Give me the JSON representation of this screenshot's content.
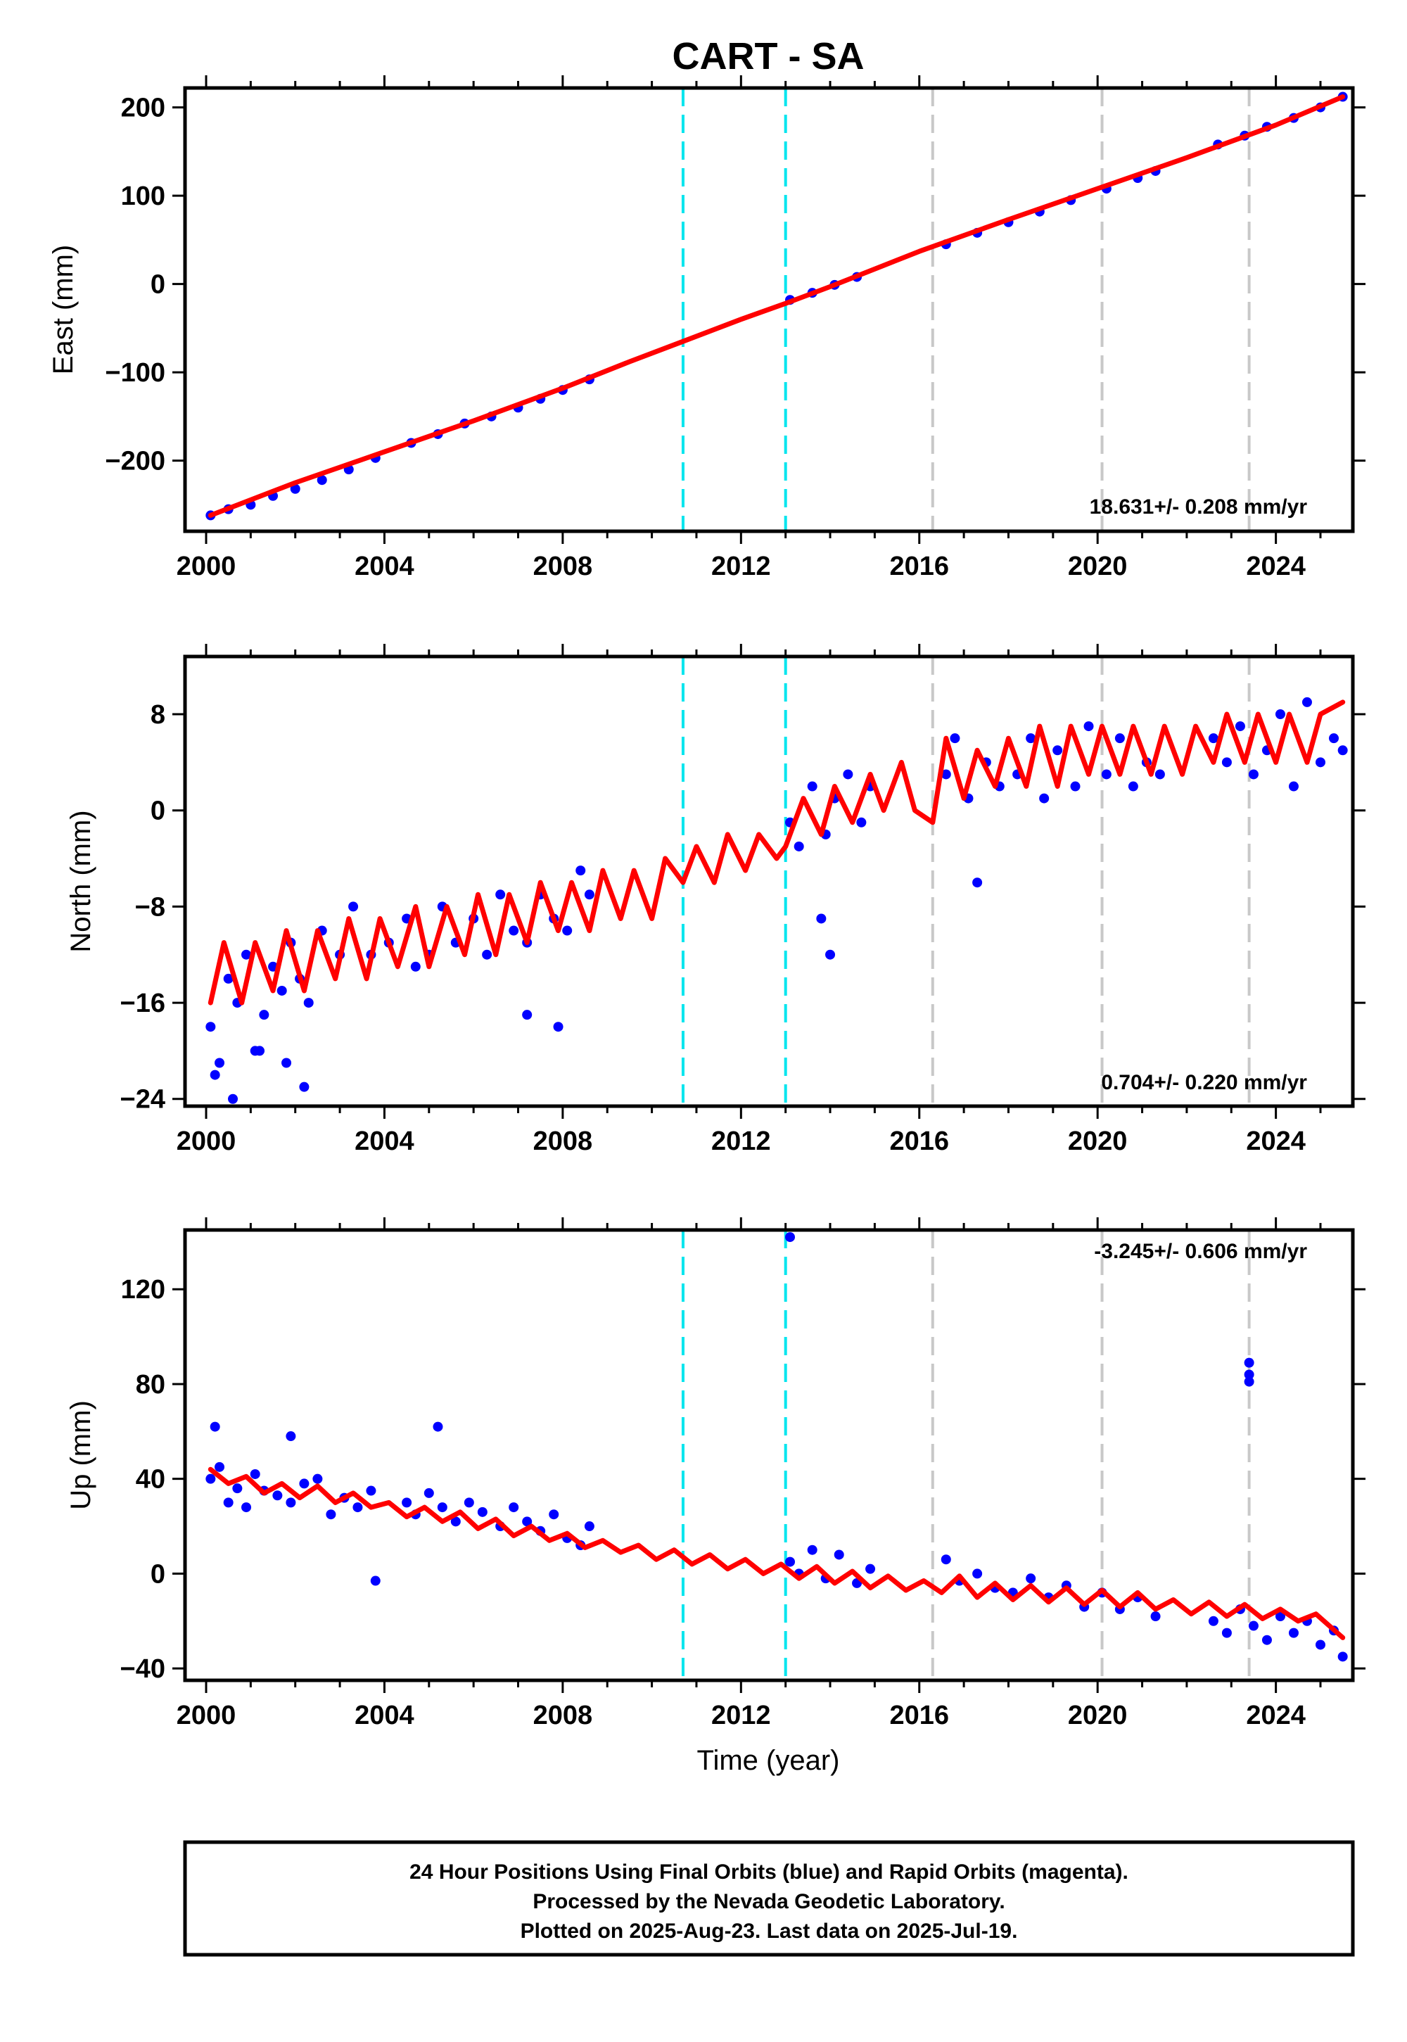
{
  "colors": {
    "final_orbits": "#0000ff",
    "model": "#ff0000",
    "equipment_change": "#00e5ee",
    "other_event": "#c8c8c8",
    "frame": "#000000"
  },
  "chart_data": {
    "type": "scatter",
    "title": "CART - SA",
    "xlabel": "Time (year)",
    "xlim": [
      2000,
      2025.6
    ],
    "xticks": [
      2000,
      2004,
      2008,
      2012,
      2016,
      2020,
      2024
    ],
    "vlines": [
      {
        "x": 2010.7,
        "color": "#00e5ee",
        "style": "dashed"
      },
      {
        "x": 2013.0,
        "color": "#00e5ee",
        "style": "dashed"
      },
      {
        "x": 2016.3,
        "color": "#c8c8c8",
        "style": "dashed"
      },
      {
        "x": 2020.1,
        "color": "#c8c8c8",
        "style": "dashed"
      },
      {
        "x": 2023.4,
        "color": "#c8c8c8",
        "style": "dashed"
      }
    ],
    "panels": [
      {
        "ylabel": "East (mm)",
        "ylim": [
          -280,
          222
        ],
        "yticks": [
          200,
          100,
          0,
          -100,
          -200
        ],
        "ytick_labels": [
          "200",
          "100",
          "0",
          "−100",
          "−200"
        ],
        "rate_text": "18.631+/- 0.208 mm/yr",
        "series": [
          {
            "type": "scatter",
            "color": "#0000ff",
            "x": [
              2000.1,
              2000.5,
              2001.0,
              2001.5,
              2002.0,
              2002.6,
              2003.2,
              2003.8,
              2004.6,
              2005.2,
              2005.8,
              2006.4,
              2007.0,
              2007.5,
              2008.0,
              2008.6,
              2013.1,
              2013.6,
              2014.1,
              2014.6,
              2016.6,
              2017.3,
              2018.0,
              2018.7,
              2019.4,
              2020.2,
              2020.9,
              2021.3,
              2022.7,
              2023.3,
              2023.8,
              2024.4,
              2025.0,
              2025.5
            ],
            "y": [
              -262,
              -255,
              -250,
              -240,
              -232,
              -222,
              -210,
              -197,
              -180,
              -170,
              -158,
              -150,
              -140,
              -130,
              -120,
              -108,
              -18,
              -10,
              -1,
              8,
              45,
              58,
              70,
              82,
              95,
              108,
              120,
              128,
              158,
              168,
              178,
              188,
              200,
              212
            ]
          },
          {
            "type": "line",
            "color": "#ff0000",
            "x": [
              2000.1,
              2002,
              2004,
              2006,
              2008,
              2009.5,
              2010.7,
              2012,
              2013,
              2014,
              2016,
              2018,
              2020,
              2022,
              2024,
              2025.5
            ],
            "y": [
              -262,
              -225,
              -190,
              -155,
              -118,
              -88,
              -65,
              -40,
              -22,
              -3,
              37,
              73,
              108,
              143,
              180,
              212
            ]
          }
        ]
      },
      {
        "ylabel": "North (mm)",
        "ylim": [
          -24.6,
          12.8
        ],
        "yticks": [
          8,
          0,
          -8,
          -16,
          -24
        ],
        "ytick_labels": [
          "8",
          "0",
          "−8",
          "−16",
          "−24"
        ],
        "rate_text": "0.704+/- 0.220 mm/yr",
        "series": [
          {
            "type": "scatter",
            "color": "#0000ff",
            "x": [
              2000.1,
              2000.3,
              2000.5,
              2000.7,
              2000.9,
              2001.1,
              2001.3,
              2001.5,
              2001.7,
              2001.9,
              2002.1,
              2002.3,
              2002.6,
              2003.0,
              2003.3,
              2003.7,
              2004.1,
              2004.5,
              2004.7,
              2005.0,
              2005.3,
              2005.6,
              2006.0,
              2006.3,
              2006.6,
              2006.9,
              2007.2,
              2007.5,
              2007.8,
              2008.1,
              2008.4,
              2008.6,
              2013.1,
              2013.3,
              2013.6,
              2013.9,
              2014.1,
              2014.4,
              2014.7,
              2014.9,
              2016.6,
              2016.8,
              2017.1,
              2017.5,
              2017.8,
              2018.2,
              2018.5,
              2018.8,
              2019.1,
              2019.5,
              2019.8,
              2020.2,
              2020.5,
              2020.8,
              2021.1,
              2021.4,
              2022.6,
              2022.9,
              2023.2,
              2023.5,
              2023.8,
              2024.1,
              2024.4,
              2024.7,
              2025.0,
              2025.3,
              2025.5,
              2000.2,
              2000.6,
              2001.2,
              2001.8,
              2002.2,
              2007.2,
              2007.9,
              2013.8,
              2014.0,
              2017.3
            ],
            "y": [
              -18,
              -21,
              -14,
              -16,
              -12,
              -20,
              -17,
              -13,
              -15,
              -11,
              -14,
              -16,
              -10,
              -12,
              -8,
              -12,
              -11,
              -9,
              -13,
              -12,
              -8,
              -11,
              -9,
              -12,
              -7,
              -10,
              -11,
              -7,
              -9,
              -10,
              -5,
              -7,
              -1,
              -3,
              2,
              -2,
              1,
              3,
              -1,
              2,
              3,
              6,
              1,
              4,
              2,
              3,
              6,
              1,
              5,
              2,
              7,
              3,
              6,
              2,
              4,
              3,
              6,
              4,
              7,
              3,
              5,
              8,
              2,
              9,
              4,
              6,
              5,
              -22,
              -24,
              -20,
              -21,
              -23,
              -17,
              -18,
              -9,
              -12,
              -6
            ]
          },
          {
            "type": "line",
            "color": "#ff0000",
            "x": [
              2000.1,
              2000.4,
              2000.8,
              2001.1,
              2001.5,
              2001.8,
              2002.2,
              2002.5,
              2002.9,
              2003.2,
              2003.6,
              2003.9,
              2004.3,
              2004.7,
              2005.0,
              2005.4,
              2005.8,
              2006.1,
              2006.5,
              2006.8,
              2007.2,
              2007.5,
              2007.9,
              2008.2,
              2008.6,
              2008.9,
              2009.3,
              2009.6,
              2010.0,
              2010.3,
              2010.7,
              2011.0,
              2011.4,
              2011.7,
              2012.1,
              2012.4,
              2012.8,
              2013.0,
              2013.4,
              2013.8,
              2014.1,
              2014.5,
              2014.9,
              2015.2,
              2015.6,
              2015.9,
              2016.3,
              2016.6,
              2017.0,
              2017.3,
              2017.7,
              2018.0,
              2018.4,
              2018.7,
              2019.1,
              2019.4,
              2019.8,
              2020.1,
              2020.5,
              2020.8,
              2021.2,
              2021.5,
              2021.9,
              2022.2,
              2022.6,
              2022.9,
              2023.3,
              2023.6,
              2024.0,
              2024.3,
              2024.7,
              2025.0,
              2025.5
            ],
            "y": [
              -16,
              -11,
              -16,
              -11,
              -15,
              -10,
              -15,
              -10,
              -14,
              -9,
              -14,
              -9,
              -13,
              -8,
              -13,
              -8,
              -12,
              -7,
              -12,
              -7,
              -11,
              -6,
              -10,
              -6,
              -10,
              -5,
              -9,
              -5,
              -9,
              -4,
              -6,
              -3,
              -6,
              -2,
              -5,
              -2,
              -4,
              -3,
              1,
              -2,
              2,
              -1,
              3,
              0,
              4,
              0,
              -1,
              6,
              1,
              5,
              2,
              6,
              2,
              7,
              2,
              7,
              3,
              7,
              3,
              7,
              3,
              7,
              3,
              7,
              4,
              8,
              4,
              8,
              4,
              8,
              4,
              8,
              9
            ]
          }
        ]
      },
      {
        "ylabel": "Up (mm)",
        "ylim": [
          -45,
          145
        ],
        "yticks": [
          120,
          80,
          40,
          0,
          -40
        ],
        "ytick_labels": [
          "120",
          "80",
          "40",
          "0",
          "−40"
        ],
        "rate_text": "-3.245+/- 0.606 mm/yr",
        "series": [
          {
            "type": "scatter",
            "color": "#0000ff",
            "x": [
              2000.1,
              2000.3,
              2000.5,
              2000.7,
              2000.9,
              2001.1,
              2001.3,
              2001.6,
              2001.9,
              2002.2,
              2002.5,
              2002.8,
              2003.1,
              2003.4,
              2003.7,
              2004.5,
              2004.7,
              2005.0,
              2005.3,
              2005.6,
              2005.9,
              2006.2,
              2006.6,
              2006.9,
              2007.2,
              2007.5,
              2007.8,
              2008.1,
              2008.4,
              2008.6,
              2013.1,
              2013.3,
              2013.6,
              2013.9,
              2014.2,
              2014.6,
              2014.9,
              2016.6,
              2016.9,
              2017.3,
              2017.7,
              2018.1,
              2018.5,
              2018.9,
              2019.3,
              2019.7,
              2020.1,
              2020.5,
              2020.9,
              2021.3,
              2022.6,
              2022.9,
              2023.2,
              2023.5,
              2023.8,
              2024.1,
              2024.4,
              2024.7,
              2025.0,
              2025.3,
              2025.5,
              2000.2,
              2001.9,
              2003.8,
              2005.2,
              2013.1,
              2023.4,
              2023.4,
              2023.4
            ],
            "y": [
              40,
              45,
              30,
              36,
              28,
              42,
              35,
              33,
              30,
              38,
              40,
              25,
              32,
              28,
              35,
              30,
              25,
              34,
              28,
              22,
              30,
              26,
              20,
              28,
              22,
              18,
              25,
              15,
              12,
              20,
              5,
              0,
              10,
              -2,
              8,
              -4,
              2,
              6,
              -3,
              0,
              -6,
              -8,
              -2,
              -10,
              -5,
              -14,
              -8,
              -15,
              -10,
              -18,
              -20,
              -25,
              -15,
              -22,
              -28,
              -18,
              -25,
              -20,
              -30,
              -24,
              -35,
              62,
              58,
              -3,
              62,
              142,
              89,
              84,
              81
            ]
          },
          {
            "type": "line",
            "color": "#ff0000",
            "x": [
              2000.1,
              2000.5,
              2000.9,
              2001.3,
              2001.7,
              2002.1,
              2002.5,
              2002.9,
              2003.3,
              2003.7,
              2004.1,
              2004.5,
              2004.9,
              2005.3,
              2005.7,
              2006.1,
              2006.5,
              2006.9,
              2007.3,
              2007.7,
              2008.1,
              2008.5,
              2008.9,
              2009.3,
              2009.7,
              2010.1,
              2010.5,
              2010.9,
              2011.3,
              2011.7,
              2012.1,
              2012.5,
              2012.9,
              2013.3,
              2013.7,
              2014.1,
              2014.5,
              2014.9,
              2015.3,
              2015.7,
              2016.1,
              2016.5,
              2016.9,
              2017.3,
              2017.7,
              2018.1,
              2018.5,
              2018.9,
              2019.3,
              2019.7,
              2020.1,
              2020.5,
              2020.9,
              2021.3,
              2021.7,
              2022.1,
              2022.5,
              2022.9,
              2023.3,
              2023.7,
              2024.1,
              2024.5,
              2024.9,
              2025.5
            ],
            "y": [
              44,
              38,
              41,
              34,
              38,
              32,
              37,
              30,
              34,
              28,
              30,
              24,
              28,
              22,
              26,
              19,
              23,
              16,
              20,
              14,
              17,
              11,
              14,
              9,
              12,
              6,
              10,
              4,
              8,
              2,
              6,
              0,
              4,
              -2,
              3,
              -4,
              1,
              -6,
              -1,
              -7,
              -3,
              -8,
              -1,
              -10,
              -4,
              -11,
              -5,
              -12,
              -6,
              -13,
              -7,
              -14,
              -8,
              -15,
              -11,
              -17,
              -12,
              -18,
              -13,
              -19,
              -15,
              -20,
              -17,
              -27
            ]
          }
        ]
      }
    ]
  },
  "footer": {
    "line1": "24 Hour Positions Using Final Orbits (blue) and Rapid Orbits (magenta).",
    "line2": "Processed by the Nevada Geodetic Laboratory.",
    "line3": "Plotted on 2025-Aug-23. Last data on 2025-Jul-19."
  }
}
